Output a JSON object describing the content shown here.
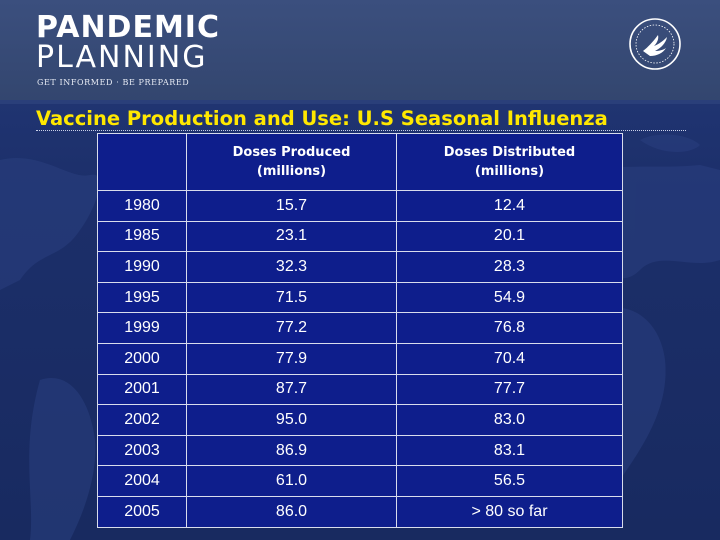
{
  "brand": {
    "line1": "PANDEMIC",
    "line2": "PLANNING",
    "tagline": "GET INFORMED · BE PREPARED",
    "seal_icon": "hhs-seal-icon"
  },
  "slide": {
    "title": "Vaccine Production and Use: U.S Seasonal Influenza"
  },
  "table": {
    "headers": [
      {
        "line1": "",
        "line2": ""
      },
      {
        "line1": "Doses Produced",
        "line2": "(millions)"
      },
      {
        "line1": "Doses Distributed",
        "line2": "(millions)"
      }
    ],
    "rows": [
      {
        "year": "1980",
        "produced": "15.7",
        "distributed": "12.4"
      },
      {
        "year": "1985",
        "produced": "23.1",
        "distributed": "20.1"
      },
      {
        "year": "1990",
        "produced": "32.3",
        "distributed": "28.3"
      },
      {
        "year": "1995",
        "produced": "71.5",
        "distributed": "54.9"
      },
      {
        "year": "1999",
        "produced": "77.2",
        "distributed": "76.8"
      },
      {
        "year": "2000",
        "produced": "77.9",
        "distributed": "70.4"
      },
      {
        "year": "2001",
        "produced": "87.7",
        "distributed": "77.7"
      },
      {
        "year": "2002",
        "produced": "95.0",
        "distributed": "83.0"
      },
      {
        "year": "2003",
        "produced": "86.9",
        "distributed": "83.1"
      },
      {
        "year": "2004",
        "produced": "61.0",
        "distributed": "56.5"
      },
      {
        "year": "2005",
        "produced": "86.0",
        "distributed": "> 80 so far"
      }
    ]
  },
  "colors": {
    "title": "#ffe800",
    "table_fill": "#0e1e8c",
    "background": "#1c2f6a"
  }
}
